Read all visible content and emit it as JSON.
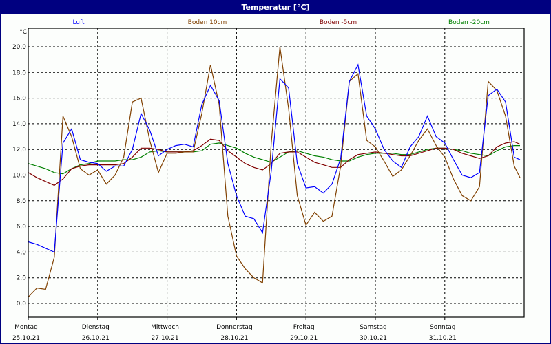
{
  "window": {
    "title": "Temperatur [°C]"
  },
  "chart_data": {
    "type": "line",
    "title": "Temperatur [°C]",
    "ylabel": "°C",
    "ylim": [
      -1.6,
      20.0
    ],
    "xlim": [
      "25.10 00:00",
      "01.11 03:00"
    ],
    "grid": true,
    "legend_placement": "top",
    "y_ticks": [
      "0,0",
      "2,0",
      "4,0",
      "6,0",
      "8,0",
      "10,0",
      "12,0",
      "14,0",
      "16,0",
      "18,0",
      "20,0"
    ],
    "y_tick_values": [
      0,
      2,
      4,
      6,
      8,
      10,
      12,
      14,
      16,
      18,
      20
    ],
    "x_ticks": [
      {
        "day": "Montag",
        "date": "25.10.21"
      },
      {
        "day": "Dienstag",
        "date": "26.10.21"
      },
      {
        "day": "Mittwoch",
        "date": "27.10.21"
      },
      {
        "day": "Donnerstag",
        "date": "28.10.21"
      },
      {
        "day": "Freitag",
        "date": "29.10.21"
      },
      {
        "day": "Samstag",
        "date": "30.10.21"
      },
      {
        "day": "Sonntag",
        "date": "31.10.21"
      }
    ],
    "x": [
      "25.10 00:00",
      "25.10 03:00",
      "25.10 06:00",
      "25.10 09:00",
      "25.10 12:00",
      "25.10 15:00",
      "25.10 18:00",
      "25.10 21:00",
      "26.10 00:00",
      "26.10 03:00",
      "26.10 06:00",
      "26.10 09:00",
      "26.10 12:00",
      "26.10 15:00",
      "26.10 18:00",
      "26.10 21:00",
      "27.10 00:00",
      "27.10 03:00",
      "27.10 06:00",
      "27.10 09:00",
      "27.10 12:00",
      "27.10 15:00",
      "27.10 18:00",
      "27.10 21:00",
      "28.10 00:00",
      "28.10 03:00",
      "28.10 06:00",
      "28.10 09:00",
      "28.10 12:00",
      "28.10 15:00",
      "28.10 18:00",
      "28.10 21:00",
      "29.10 00:00",
      "29.10 03:00",
      "29.10 06:00",
      "29.10 09:00",
      "29.10 12:00",
      "29.10 15:00",
      "29.10 18:00",
      "29.10 21:00",
      "30.10 00:00",
      "30.10 03:00",
      "30.10 06:00",
      "30.10 09:00",
      "30.10 12:00",
      "30.10 15:00",
      "30.10 18:00",
      "30.10 21:00",
      "31.10 00:00",
      "31.10 03:00",
      "31.10 06:00",
      "31.10 09:00",
      "31.10 12:00",
      "31.10 15:00",
      "31.10 18:00",
      "31.10 21:00",
      "01.11 00:00",
      "01.11 02:00"
    ],
    "series": [
      {
        "name": "Luft",
        "color": "#0000ff",
        "values": [
          4.8,
          4.6,
          4.3,
          4.0,
          12.5,
          13.6,
          11.2,
          11.0,
          10.9,
          10.3,
          10.7,
          10.7,
          12.0,
          14.8,
          13.5,
          11.5,
          12.0,
          12.3,
          12.4,
          12.2,
          15.5,
          17.0,
          15.8,
          10.9,
          8.4,
          6.8,
          6.6,
          5.5,
          10.3,
          17.5,
          16.8,
          10.9,
          9.0,
          9.1,
          8.6,
          9.3,
          11.3,
          17.3,
          18.6,
          14.6,
          13.6,
          12.0,
          11.1,
          10.6,
          12.2,
          13.0,
          14.6,
          13.0,
          12.5,
          11.2,
          10.0,
          9.8,
          10.2,
          16.2,
          16.7,
          15.7,
          11.4,
          11.2
        ]
      },
      {
        "name": "Boden 10cm",
        "color": "#804000",
        "values": [
          0.5,
          1.2,
          1.1,
          3.6,
          14.6,
          13.0,
          10.5,
          10.0,
          10.4,
          9.3,
          10.0,
          11.4,
          15.7,
          16.0,
          12.7,
          10.2,
          11.7,
          11.7,
          11.8,
          11.8,
          14.8,
          18.6,
          15.5,
          6.8,
          3.7,
          2.7,
          2.0,
          1.6,
          12.5,
          20.0,
          15.2,
          8.4,
          6.1,
          7.1,
          6.4,
          6.8,
          10.7,
          17.3,
          17.9,
          12.7,
          12.2,
          11.1,
          9.9,
          10.4,
          11.5,
          12.7,
          13.6,
          12.3,
          11.4,
          9.7,
          8.4,
          8.0,
          9.1,
          17.3,
          16.6,
          14.6,
          10.7,
          9.8
        ]
      },
      {
        "name": "Boden -5cm",
        "color": "#800000",
        "values": [
          10.2,
          9.8,
          9.5,
          9.2,
          9.7,
          10.5,
          10.7,
          10.8,
          10.8,
          10.8,
          10.8,
          10.9,
          11.4,
          12.1,
          12.1,
          12.0,
          11.8,
          11.8,
          11.8,
          11.9,
          12.3,
          12.8,
          12.7,
          11.9,
          11.4,
          10.9,
          10.6,
          10.4,
          10.9,
          11.7,
          11.8,
          11.8,
          11.4,
          11.0,
          10.8,
          10.6,
          10.6,
          11.2,
          11.6,
          11.7,
          11.8,
          11.7,
          11.6,
          11.5,
          11.5,
          11.7,
          11.9,
          12.1,
          12.1,
          12.0,
          11.7,
          11.5,
          11.3,
          11.5,
          12.2,
          12.5,
          12.6,
          12.4
        ]
      },
      {
        "name": "Boden -20cm",
        "color": "#008000",
        "values": [
          10.9,
          10.7,
          10.5,
          10.2,
          10.1,
          10.5,
          10.8,
          10.9,
          11.1,
          11.1,
          11.1,
          11.2,
          11.2,
          11.4,
          11.8,
          11.9,
          11.8,
          11.8,
          11.8,
          11.8,
          11.9,
          12.4,
          12.5,
          12.3,
          12.1,
          11.7,
          11.4,
          11.2,
          11.0,
          11.4,
          11.8,
          11.9,
          11.7,
          11.5,
          11.4,
          11.2,
          11.1,
          11.1,
          11.4,
          11.6,
          11.7,
          11.7,
          11.7,
          11.6,
          11.6,
          11.8,
          12.0,
          12.1,
          12.1,
          12.0,
          11.9,
          11.7,
          11.6,
          11.5,
          11.9,
          12.2,
          12.3,
          12.3
        ]
      }
    ]
  }
}
